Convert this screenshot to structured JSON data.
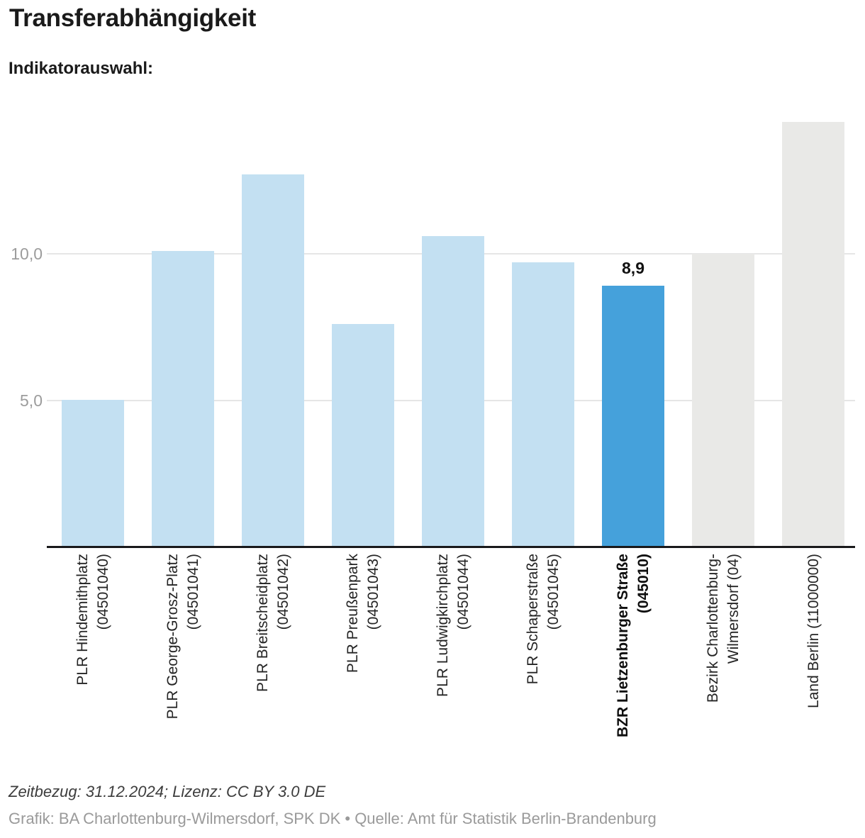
{
  "page": {
    "title": "Transferabhängigkeit",
    "subtitle": "Indikatorauswahl:",
    "footer_line1": "Zeitbezug: 31.12.2024; Lizenz: CC BY 3.0 DE",
    "footer_line2": "Grafik: BA Charlottenburg-Wilmersdorf, SPK DK • Quelle: Amt für Statistik Berlin-Brandenburg"
  },
  "chart_data": {
    "type": "bar",
    "title": "Transferabhängigkeit",
    "categories": [
      "PLR Hindemithplatz (04501040)",
      "PLR George-Grosz-Platz (04501041)",
      "PLR Breitscheidplatz (04501042)",
      "PLR Preußenpark (04501043)",
      "PLR Ludwigkirchplatz (04501044)",
      "PLR Schaperstraße (04501045)",
      "BZR Lietzenburger Straße (045010)",
      "Bezirk Charlottenburg-Wilmersdorf (04)",
      "Land Berlin (11000000)"
    ],
    "label_lines": [
      [
        "PLR Hindemithplatz",
        "(04501040)"
      ],
      [
        "PLR George-Grosz-Platz",
        "(04501041)"
      ],
      [
        "PLR Breitscheidplatz",
        "(04501042)"
      ],
      [
        "PLR Preußenpark",
        "(04501043)"
      ],
      [
        "PLR Ludwigkirchplatz",
        "(04501044)"
      ],
      [
        "PLR Schaperstraße",
        "(04501045)"
      ],
      [
        "BZR Lietzenburger Straße",
        "(045010)"
      ],
      [
        "Bezirk Charlottenburg-",
        "Wilmersdorf (04)"
      ],
      [
        "Land Berlin (11000000)"
      ]
    ],
    "values": [
      5.0,
      10.1,
      12.7,
      7.6,
      10.6,
      9.7,
      8.9,
      10.0,
      14.5
    ],
    "bar_styles": [
      "plr",
      "plr",
      "plr",
      "plr",
      "plr",
      "plr",
      "highlight",
      "reference",
      "reference"
    ],
    "highlight": {
      "index": 6,
      "data_label": "8,9"
    },
    "y_axis": {
      "range": [
        0,
        15
      ],
      "ticks": [
        {
          "value": 5,
          "label": "5,0"
        },
        {
          "value": 10,
          "label": "10,0"
        }
      ]
    },
    "xlabel": "",
    "ylabel": "",
    "grid": "horizontal",
    "legend": "none",
    "colors": {
      "plr": "#c3e0f2",
      "highlight": "#45a1db",
      "reference": "#e9e9e7",
      "gridline": "#e6e6e6",
      "axis": "#19191b",
      "tick_text": "#9c9c9c"
    }
  }
}
